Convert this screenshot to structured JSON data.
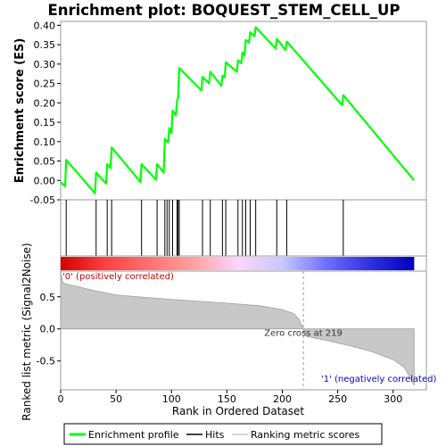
{
  "chart_data": [
    {
      "type": "line",
      "panel": "enrichment",
      "title": "Enrichment plot: BOQUEST_STEM_CELL_UP",
      "xlabel": "",
      "ylabel": "Enrichment score (ES)",
      "xlim": [
        0,
        330
      ],
      "ylim": [
        -0.05,
        0.41
      ],
      "y_ticks": [
        -0.05,
        0.0,
        0.05,
        0.1,
        0.15,
        0.2,
        0.25,
        0.3,
        0.35,
        0.4
      ],
      "y_tick_labels": [
        "-0.05",
        "0.00",
        "0.05",
        "0.10",
        "0.15",
        "0.20",
        "0.25",
        "0.30",
        "0.35",
        "0.40"
      ],
      "grid": false,
      "series": [
        {
          "name": "Enrichment profile",
          "color": "#00ff00",
          "x": [
            0,
            4,
            5,
            31,
            32,
            41,
            42,
            45,
            46,
            72,
            73,
            86,
            87,
            93,
            94,
            97,
            98,
            100,
            101,
            104,
            105,
            106,
            107,
            127,
            128,
            134,
            135,
            145,
            146,
            148,
            149,
            159,
            160,
            163,
            164,
            166,
            167,
            170,
            171,
            175,
            176,
            194,
            195,
            203,
            204,
            254,
            255,
            319
          ],
          "y": [
            -0.005,
            -0.015,
            0.053,
            -0.033,
            0.02,
            -0.008,
            0.042,
            0.032,
            0.085,
            -0.004,
            0.042,
            0.002,
            0.042,
            0.02,
            0.107,
            0.098,
            0.135,
            0.122,
            0.18,
            0.168,
            0.205,
            0.214,
            0.29,
            0.232,
            0.267,
            0.25,
            0.28,
            0.244,
            0.27,
            0.266,
            0.305,
            0.28,
            0.31,
            0.302,
            0.33,
            0.322,
            0.362,
            0.355,
            0.382,
            0.372,
            0.395,
            0.34,
            0.365,
            0.336,
            0.358,
            0.194,
            0.22,
            0.0
          ]
        }
      ]
    },
    {
      "type": "scatter",
      "panel": "hits",
      "series": [
        {
          "name": "Hits",
          "color": "#000000",
          "x": [
            5,
            32,
            42,
            46,
            73,
            87,
            94,
            96,
            98,
            101,
            105,
            106,
            107,
            128,
            135,
            146,
            149,
            160,
            164,
            167,
            171,
            176,
            195,
            204,
            255
          ]
        }
      ]
    },
    {
      "type": "heatmap",
      "panel": "ranking-colorbar",
      "x_range": [
        0,
        319
      ],
      "gradient_stops": [
        "#d40000",
        "#ff4040",
        "#ff7070",
        "#ffa0a0",
        "#ffd4ff",
        "#c8c8ff",
        "#7070ff",
        "#3030e0",
        "#0000c0"
      ]
    },
    {
      "type": "area",
      "panel": "ranked-list",
      "title": "",
      "xlabel": "Rank in Ordered Dataset",
      "ylabel": "Ranked list metric (Signal2Noise)",
      "xlim": [
        0,
        330
      ],
      "ylim": [
        -0.95,
        0.9
      ],
      "x_ticks": [
        0,
        50,
        100,
        150,
        200,
        250,
        300
      ],
      "x_tick_labels": [
        "0",
        "50",
        "100",
        "150",
        "200",
        "250",
        "300"
      ],
      "y_ticks": [
        -0.5,
        0.0,
        0.5
      ],
      "y_tick_labels": [
        "-0.5",
        "0.0",
        "0.5"
      ],
      "grid": false,
      "series": [
        {
          "name": "Ranking metric scores",
          "color": "#a0a0a0",
          "x": [
            0,
            2,
            5,
            15,
            30,
            50,
            70,
            100,
            150,
            180,
            200,
            210,
            215,
            219,
            222,
            240,
            260,
            280,
            300,
            310,
            315,
            319
          ],
          "y": [
            0.88,
            0.72,
            0.7,
            0.66,
            0.6,
            0.53,
            0.5,
            0.46,
            0.4,
            0.36,
            0.3,
            0.24,
            0.15,
            0.0,
            -0.12,
            -0.18,
            -0.26,
            -0.35,
            -0.48,
            -0.6,
            -0.75,
            -0.88
          ]
        }
      ],
      "annotations": [
        "'0' (positively correlated)",
        "Zero cross at 219",
        "'1' (negatively correlated)"
      ],
      "zero_cross": 219
    }
  ],
  "legend": {
    "items": [
      {
        "label": "Enrichment profile",
        "color": "#00ff00"
      },
      {
        "label": "Hits",
        "color": "#000000"
      },
      {
        "label": "Ranking metric scores",
        "color": "#c8c8c8"
      }
    ]
  },
  "colors": {
    "positive_label": "#cc0000",
    "negative_label": "#0000cc"
  }
}
